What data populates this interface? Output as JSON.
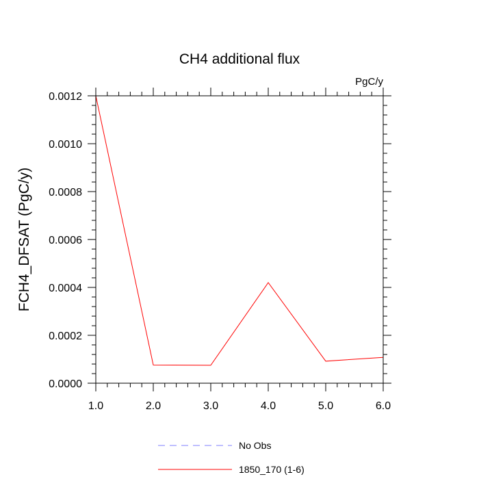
{
  "chart_data": {
    "type": "line",
    "title": "CH4 additional flux",
    "units": "PgC/y",
    "xlabel": "",
    "ylabel": "FCH4_DFSAT  (PgC/y)",
    "xlim": [
      1.0,
      6.0
    ],
    "ylim": [
      0.0,
      0.0012
    ],
    "x_ticks": [
      1.0,
      2.0,
      3.0,
      4.0,
      5.0,
      6.0
    ],
    "x_tick_labels": [
      "1.0",
      "2.0",
      "3.0",
      "4.0",
      "5.0",
      "6.0"
    ],
    "y_ticks": [
      0.0,
      0.0002,
      0.0004,
      0.0006,
      0.0008,
      0.001,
      0.0012
    ],
    "y_tick_labels": [
      "0.0000",
      "0.0002",
      "0.0004",
      "0.0006",
      "0.0008",
      "0.0010",
      "0.0012"
    ],
    "grid": false,
    "legend_position": "bottom",
    "series": [
      {
        "name": "1850_170 (1-6)",
        "color": "#ff0000",
        "dash": "solid",
        "x": [
          1.0,
          2.0,
          3.0,
          4.0,
          5.0,
          6.0
        ],
        "y": [
          0.0012,
          7.6e-05,
          7.5e-05,
          0.00042,
          9.2e-05,
          0.000108
        ]
      }
    ],
    "legend": [
      {
        "label": "No Obs",
        "color": "#8080ff",
        "dash": "dashed"
      },
      {
        "label": "1850_170 (1-6)",
        "color": "#ff0000",
        "dash": "solid"
      }
    ]
  }
}
